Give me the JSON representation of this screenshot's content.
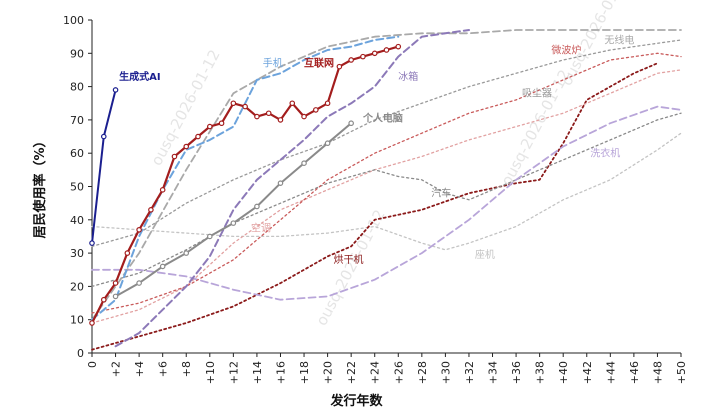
{
  "chart_data": {
    "type": "line",
    "title": "",
    "xlabel": "发行年数",
    "ylabel": "居民使用率（%）",
    "xlim": [
      0,
      50
    ],
    "ylim": [
      0,
      100
    ],
    "xticks": [
      0,
      2,
      4,
      6,
      8,
      10,
      12,
      14,
      16,
      18,
      20,
      22,
      24,
      26,
      28,
      30,
      32,
      34,
      36,
      38,
      40,
      42,
      44,
      46,
      48,
      50
    ],
    "xtick_labels": [
      "0",
      "+2",
      "+4",
      "+6",
      "+8",
      "+10",
      "+12",
      "+14",
      "+16",
      "+18",
      "+20",
      "+22",
      "+24",
      "+26",
      "+28",
      "+30",
      "+32",
      "+34",
      "+36",
      "+38",
      "+40",
      "+42",
      "+44",
      "+46",
      "+48",
      "+50"
    ],
    "yticks": [
      0,
      10,
      20,
      30,
      40,
      50,
      60,
      70,
      80,
      90,
      100
    ],
    "ytick_labels": [
      "0",
      "10",
      "20",
      "30",
      "40",
      "50",
      "60",
      "70",
      "80",
      "90",
      "100"
    ],
    "watermark": "ousq-2026-01-12",
    "series": [
      {
        "name": "生成式AI",
        "color": "#1b1f8f",
        "style": "solid",
        "width": 2,
        "markers": true,
        "label_x": 2.3,
        "label_y": 82,
        "x": [
          0,
          1,
          2
        ],
        "y": [
          33,
          65,
          79
        ]
      },
      {
        "name": "互联网",
        "color": "#a31d1d",
        "style": "solid",
        "width": 2.2,
        "markers": true,
        "label_x": 18,
        "label_y": 86,
        "x": [
          0,
          1,
          2,
          3,
          4,
          5,
          6,
          7,
          8,
          9,
          10,
          11,
          12,
          13,
          14,
          15,
          16,
          17,
          18,
          19,
          20,
          21,
          22,
          23,
          24,
          25,
          26
        ],
        "y": [
          9,
          16,
          21,
          30,
          37,
          43,
          49,
          59,
          62,
          65,
          68,
          69,
          75,
          74,
          71,
          72,
          70,
          75,
          71,
          73,
          75,
          86,
          88,
          89,
          90,
          91,
          92
        ]
      },
      {
        "name": "个人电脑",
        "color": "#8a8a8a",
        "style": "solid",
        "width": 2,
        "markers": true,
        "label_x": 23,
        "label_y": 69.5,
        "x": [
          2,
          4,
          6,
          8,
          10,
          12,
          14,
          16,
          18,
          20,
          22
        ],
        "y": [
          17,
          21,
          26,
          30,
          35,
          39,
          44,
          51,
          57,
          63,
          69
        ]
      },
      {
        "name": "手机",
        "color": "#6ca3dc",
        "style": "dash",
        "width": 2,
        "markers": false,
        "label_x": 14.5,
        "label_y": 86,
        "x": [
          0,
          2,
          4,
          6,
          8,
          10,
          12,
          14,
          16,
          18,
          20,
          22,
          24,
          26
        ],
        "y": [
          10,
          16,
          35,
          49,
          61,
          64,
          68,
          82,
          84,
          88,
          91,
          92,
          94,
          95
        ]
      },
      {
        "name": "冰箱",
        "color": "#8c79b8",
        "style": "dash",
        "width": 2,
        "markers": false,
        "label_x": 26,
        "label_y": 82,
        "x": [
          2,
          4,
          6,
          8,
          10,
          12,
          14,
          16,
          18,
          20,
          22,
          24,
          26,
          28,
          30,
          32
        ],
        "y": [
          2,
          6,
          13,
          20,
          29,
          43,
          52,
          58,
          64,
          71,
          75,
          80,
          89,
          95,
          96,
          97
        ]
      },
      {
        "name": "微波炉",
        "color": "#c95b5b",
        "style": "dot",
        "width": 1.3,
        "markers": false,
        "label_x": 39,
        "label_y": 90,
        "x": [
          0,
          4,
          8,
          12,
          16,
          20,
          24,
          28,
          32,
          36,
          40,
          44,
          48,
          50
        ],
        "y": [
          12,
          15,
          20,
          28,
          40,
          52,
          60,
          66,
          72,
          76,
          82,
          88,
          90,
          89
        ]
      },
      {
        "name": "无线电",
        "color": "#a9a9a9",
        "style": "dash",
        "width": 1.8,
        "markers": false,
        "label_x": 43.5,
        "label_y": 93,
        "x": [
          0,
          4,
          8,
          12,
          16,
          20,
          24,
          28,
          32,
          36,
          40,
          44,
          48,
          50
        ],
        "y": [
          10,
          30,
          55,
          78,
          86,
          92,
          95,
          96,
          96,
          97,
          97,
          97,
          97,
          97
        ]
      },
      {
        "name": "吸尘器",
        "color": "#9a9a9a",
        "style": "dot",
        "width": 1.3,
        "markers": false,
        "label_x": 36.5,
        "label_y": 77,
        "x": [
          0,
          4,
          8,
          12,
          16,
          20,
          24,
          28,
          32,
          36,
          40,
          44,
          48,
          50
        ],
        "y": [
          32,
          36,
          45,
          52,
          58,
          63,
          70,
          75,
          80,
          84,
          88,
          91,
          93,
          94
        ]
      },
      {
        "name": "洗衣机",
        "color": "#b8a5d9",
        "style": "dash",
        "width": 1.8,
        "markers": false,
        "label_x": 42.3,
        "label_y": 59,
        "x": [
          0,
          4,
          8,
          12,
          16,
          20,
          24,
          28,
          32,
          36,
          40,
          44,
          48,
          50
        ],
        "y": [
          25,
          25,
          23,
          19,
          16,
          17,
          22,
          30,
          40,
          52,
          62,
          69,
          74,
          73
        ]
      },
      {
        "name": "汽车",
        "color": "#8a8a8a",
        "style": "dot",
        "width": 1.3,
        "markers": false,
        "label_x": 28.8,
        "label_y": 47,
        "x": [
          0,
          4,
          8,
          12,
          16,
          20,
          24,
          26,
          28,
          30,
          32,
          34,
          36,
          38,
          40,
          44,
          48,
          50
        ],
        "y": [
          20,
          24,
          31,
          39,
          45,
          51,
          55,
          53,
          52,
          48,
          46,
          49,
          52,
          55,
          58,
          64,
          70,
          72
        ]
      },
      {
        "name": "空调",
        "color": "#e2a2a2",
        "style": "dot",
        "width": 1.3,
        "markers": false,
        "label_x": 13.5,
        "label_y": 36.5,
        "x": [
          0,
          4,
          8,
          12,
          16,
          20,
          24,
          28,
          32,
          36,
          40,
          44,
          48,
          50
        ],
        "y": [
          9,
          13,
          20,
          33,
          43,
          49,
          55,
          59,
          64,
          68,
          72,
          78,
          84,
          85
        ]
      },
      {
        "name": "烘干机",
        "color": "#8b1a1a",
        "style": "dot",
        "width": 1.8,
        "markers": false,
        "label_x": 20.5,
        "label_y": 27,
        "x": [
          0,
          4,
          8,
          12,
          16,
          20,
          22,
          24,
          28,
          32,
          36,
          38,
          40,
          42,
          44,
          46,
          48
        ],
        "y": [
          1,
          5,
          9,
          14,
          21,
          29,
          32,
          40,
          43,
          48,
          51,
          52,
          63,
          76,
          80,
          84,
          87
        ]
      },
      {
        "name": "座机",
        "color": "#c4c4c4",
        "style": "dot",
        "width": 1.3,
        "markers": false,
        "label_x": 32.5,
        "label_y": 28.5,
        "x": [
          0,
          4,
          8,
          12,
          16,
          20,
          24,
          28,
          30,
          32,
          36,
          40,
          44,
          48,
          50
        ],
        "y": [
          38,
          37,
          36,
          35,
          35,
          36,
          38,
          33,
          31,
          33,
          38,
          46,
          52,
          61,
          66
        ]
      }
    ]
  }
}
